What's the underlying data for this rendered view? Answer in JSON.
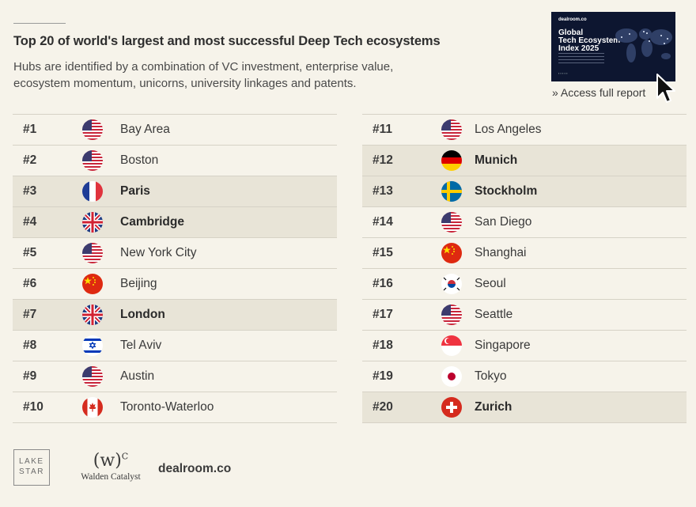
{
  "header": {
    "title": "Top 20 of world's largest and most successful Deep Tech ecosystems",
    "subtitle": "Hubs are identified by a combination of VC investment, enterprise value, ecosystem momentum, unicorns, university linkages and patents."
  },
  "report": {
    "brand": "dealroom.co",
    "title": "Global\nTech Ecosystem\nIndex 2025",
    "access_label": "» Access full report"
  },
  "ranking_left": [
    {
      "rank": "#1",
      "city": "Bay Area",
      "flag": "us",
      "highlight": false
    },
    {
      "rank": "#2",
      "city": "Boston",
      "flag": "us",
      "highlight": false
    },
    {
      "rank": "#3",
      "city": "Paris",
      "flag": "fr",
      "highlight": true
    },
    {
      "rank": "#4",
      "city": "Cambridge",
      "flag": "gb",
      "highlight": true
    },
    {
      "rank": "#5",
      "city": "New York City",
      "flag": "us",
      "highlight": false
    },
    {
      "rank": "#6",
      "city": "Beijing",
      "flag": "cn",
      "highlight": false
    },
    {
      "rank": "#7",
      "city": "London",
      "flag": "gb",
      "highlight": true
    },
    {
      "rank": "#8",
      "city": "Tel Aviv",
      "flag": "il",
      "highlight": false
    },
    {
      "rank": "#9",
      "city": "Austin",
      "flag": "us",
      "highlight": false
    },
    {
      "rank": "#10",
      "city": "Toronto-Waterloo",
      "flag": "ca",
      "highlight": false
    }
  ],
  "ranking_right": [
    {
      "rank": "#11",
      "city": "Los Angeles",
      "flag": "us",
      "highlight": false
    },
    {
      "rank": "#12",
      "city": "Munich",
      "flag": "de",
      "highlight": true
    },
    {
      "rank": "#13",
      "city": "Stockholm",
      "flag": "se",
      "highlight": true
    },
    {
      "rank": "#14",
      "city": "San Diego",
      "flag": "us",
      "highlight": false
    },
    {
      "rank": "#15",
      "city": "Shanghai",
      "flag": "cn",
      "highlight": false
    },
    {
      "rank": "#16",
      "city": "Seoul",
      "flag": "kr",
      "highlight": false
    },
    {
      "rank": "#17",
      "city": "Seattle",
      "flag": "us",
      "highlight": false
    },
    {
      "rank": "#18",
      "city": "Singapore",
      "flag": "sg",
      "highlight": false
    },
    {
      "rank": "#19",
      "city": "Tokyo",
      "flag": "jp",
      "highlight": false
    },
    {
      "rank": "#20",
      "city": "Zurich",
      "flag": "ch",
      "highlight": true
    }
  ],
  "logos": {
    "lake_star": "LAKE\nSTAR",
    "walden_mark": "(w)",
    "walden_sup": "C",
    "walden_name": "Walden Catalyst",
    "dealroom": "dealroom.co"
  },
  "colors": {
    "background": "#f6f3ea",
    "highlight_row": "#e8e4d7",
    "report_bg": "#0d1630"
  }
}
